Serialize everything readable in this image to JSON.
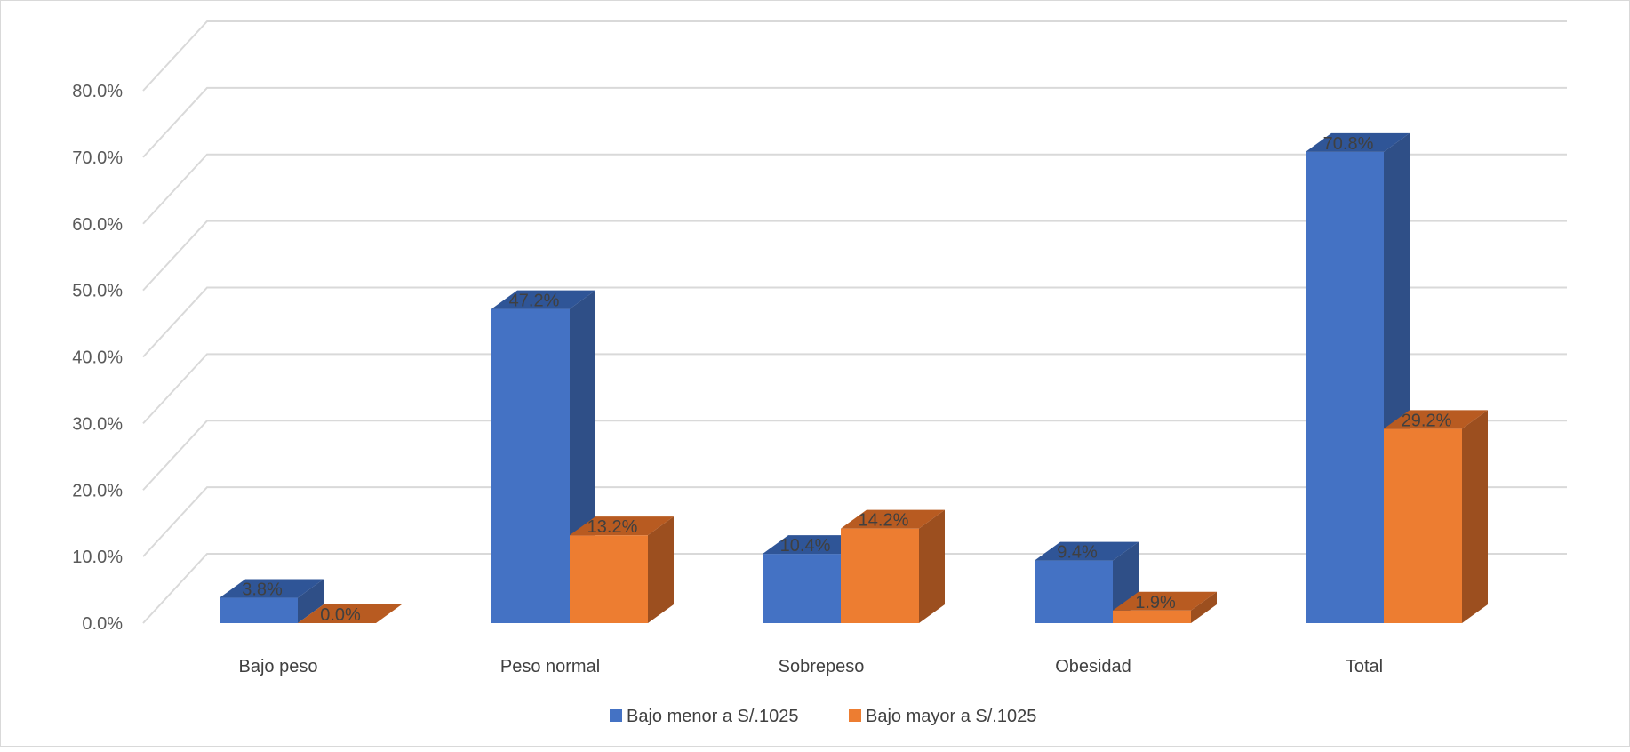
{
  "chart_data": {
    "type": "bar",
    "style": "3d-clustered-column",
    "categories": [
      "Bajo peso",
      "Peso normal",
      "Sobrepeso",
      "Obesidad",
      "Total"
    ],
    "series": [
      {
        "name": "Bajo menor a S/.1025",
        "values": [
          3.8,
          47.2,
          10.4,
          9.4,
          70.8
        ],
        "color": "#4472C4",
        "side_color": "#2F4F87",
        "top_color": "#2F5597"
      },
      {
        "name": "Bajo mayor a S/.1025",
        "values": [
          0.0,
          13.2,
          14.2,
          1.9,
          29.2
        ],
        "color": "#ED7D31",
        "side_color": "#9C4F1F",
        "top_color": "#B85B21"
      }
    ],
    "data_labels": [
      [
        "3.8%",
        "47.2%",
        "10.4%",
        "9.4%",
        "70.8%"
      ],
      [
        "0.0%",
        "13.2%",
        "14.2%",
        "1.9%",
        "29.2%"
      ]
    ],
    "y_ticks": [
      "0.0%",
      "10.0%",
      "20.0%",
      "30.0%",
      "40.0%",
      "50.0%",
      "60.0%",
      "70.0%",
      "80.0%"
    ],
    "ylim": [
      0,
      80
    ],
    "grid": true,
    "legend_position": "bottom",
    "title": "",
    "xlabel": "",
    "ylabel": ""
  }
}
